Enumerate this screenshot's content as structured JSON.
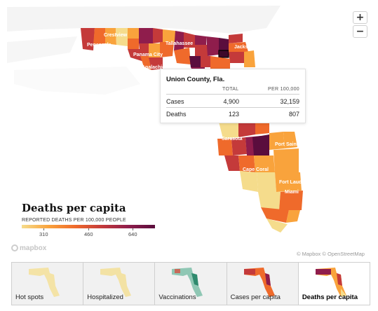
{
  "map": {
    "city_labels": [
      "Crestview",
      "Pensacola",
      "Tallahassee",
      "Panama City",
      "Apalachicola",
      "Jacksonville",
      "Port Saint Lucie",
      "Cape Coral",
      "Fort Lauderdale",
      "Miami",
      "Sarasota"
    ],
    "county_colors": {
      "light": "#f5dc8c",
      "mid_light": "#f9a33c",
      "mid": "#ef6a2b",
      "dark": "#c43a3a",
      "darker": "#8f1d4c",
      "darkest": "#5a0d3d"
    }
  },
  "zoom": {
    "in_label": "+",
    "out_label": "−"
  },
  "tooltip": {
    "title": "Union County, Fla.",
    "col_total": "TOTAL",
    "col_per100k": "PER 100,000",
    "rows": [
      {
        "label": "Cases",
        "total": "4,900",
        "per100k": "32,159"
      },
      {
        "label": "Deaths",
        "total": "123",
        "per100k": "807"
      }
    ]
  },
  "legend": {
    "title": "Deaths per capita",
    "subtitle": "REPORTED DEATHS PER 100,000 PEOPLE",
    "ticks": [
      "310",
      "460",
      "640"
    ],
    "gradient": [
      "#f5dc8c",
      "#f9a33c",
      "#ef6a2b",
      "#c43a3a",
      "#8f1d4c",
      "#5a0d3d"
    ]
  },
  "attribution": {
    "logo": "mapbox",
    "text": "© Mapbox © OpenStreetMap"
  },
  "thumbnails": [
    {
      "label": "Hot spots",
      "active": false
    },
    {
      "label": "Hospitalized",
      "active": false
    },
    {
      "label": "Vaccinations",
      "active": false
    },
    {
      "label": "Cases per capita",
      "active": false
    },
    {
      "label": "Deaths per capita",
      "active": true
    }
  ]
}
